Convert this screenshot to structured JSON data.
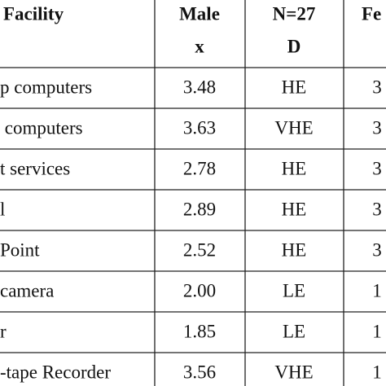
{
  "table": {
    "header": [
      [
        "Facility"
      ],
      [
        "Male",
        "x"
      ],
      [
        "N=27",
        "D"
      ],
      [
        "Fe"
      ]
    ],
    "rows": [
      [
        "p computers",
        "3.48",
        "HE",
        "3"
      ],
      [
        " computers",
        "3.63",
        "VHE",
        "3"
      ],
      [
        "t services",
        "2.78",
        "HE",
        "3"
      ],
      [
        "l",
        "2.89",
        "HE",
        "3"
      ],
      [
        "Point",
        "2.52",
        "HE",
        "3"
      ],
      [
        "camera",
        "2.00",
        "LE",
        "1"
      ],
      [
        "r",
        "1.85",
        "LE",
        "1"
      ],
      [
        "-tape Recorder",
        "3.56",
        "VHE",
        "1"
      ]
    ]
  }
}
